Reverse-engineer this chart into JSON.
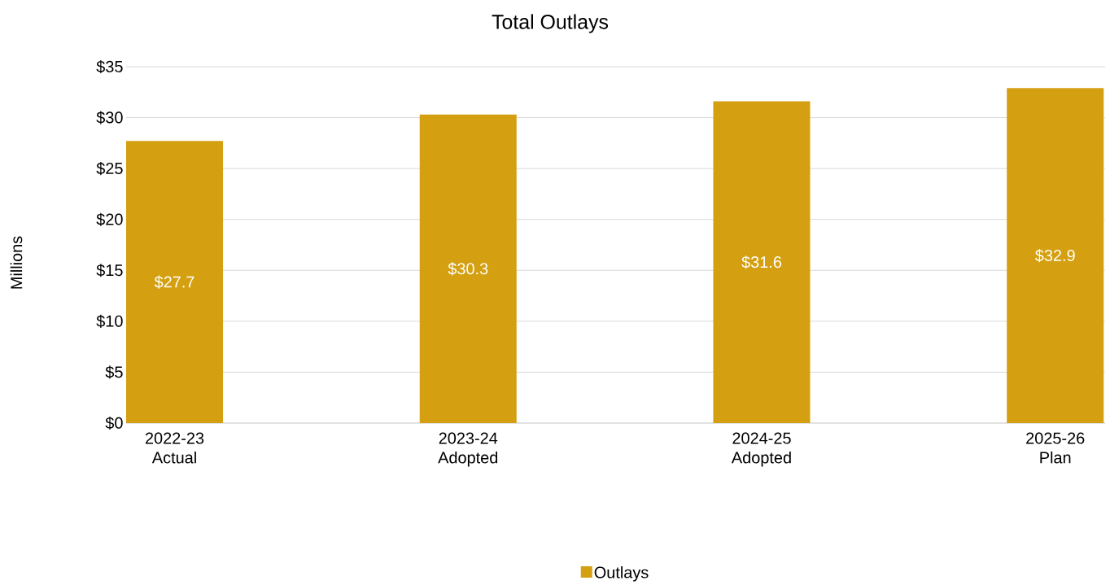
{
  "chart_data": {
    "type": "bar",
    "title": "Total Outlays",
    "ylabel": "Millions",
    "categories": [
      "2022-23 Actual",
      "2023-24 Adopted",
      "2024-25 Adopted",
      "2025-26 Plan"
    ],
    "series": [
      {
        "name": "Outlays",
        "color": "#d4a012",
        "values": [
          27.7,
          30.3,
          31.6,
          32.9
        ],
        "value_labels": [
          "$27.7",
          "$30.3",
          "$31.6",
          "$32.9"
        ]
      }
    ],
    "ylim": [
      0,
      35
    ],
    "yticks": [
      {
        "value": 0,
        "label": "$0"
      },
      {
        "value": 5,
        "label": "$5"
      },
      {
        "value": 10,
        "label": "$10"
      },
      {
        "value": 15,
        "label": "$15"
      },
      {
        "value": 20,
        "label": "$20"
      },
      {
        "value": 25,
        "label": "$25"
      },
      {
        "value": 30,
        "label": "$30"
      },
      {
        "value": 35,
        "label": "$35"
      }
    ],
    "grid": "y",
    "legend": "bottom"
  }
}
